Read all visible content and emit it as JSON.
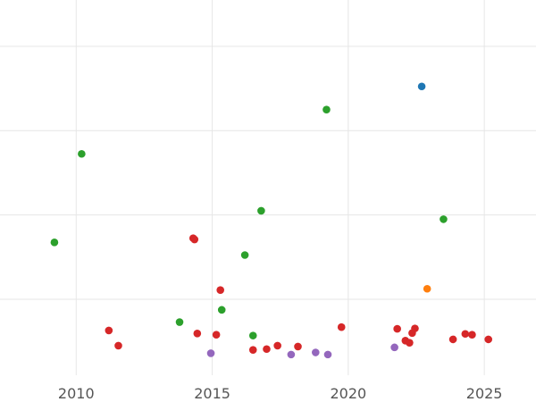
{
  "colors": {
    "blue": "#1f77b4",
    "orange": "#ff7f0e",
    "green": "#2ca02c",
    "red": "#d62728",
    "purple": "#9467bd",
    "grid": "#e6e6e6",
    "tick_text": "#555555"
  },
  "chart_data": {
    "type": "scatter",
    "title": "",
    "xlabel": "",
    "ylabel": "",
    "grid": true,
    "legend": "none",
    "xlim": [
      2007.2,
      2026.9
    ],
    "ylim": [
      -0.3,
      8.6
    ],
    "x_ticks": [
      2010,
      2015,
      2020,
      2025
    ],
    "y_gridlines": [
      1.5,
      3.5,
      5.5,
      7.5
    ],
    "series": [
      {
        "color": "blue",
        "points": [
          {
            "x": 2022.7,
            "y": 6.55
          }
        ]
      },
      {
        "color": "orange",
        "points": [
          {
            "x": 2022.9,
            "y": 1.75
          }
        ]
      },
      {
        "color": "green",
        "points": [
          {
            "x": 2009.2,
            "y": 2.85
          },
          {
            "x": 2010.2,
            "y": 4.95
          },
          {
            "x": 2013.8,
            "y": 0.96
          },
          {
            "x": 2015.35,
            "y": 1.25
          },
          {
            "x": 2016.2,
            "y": 2.55
          },
          {
            "x": 2016.5,
            "y": 0.64
          },
          {
            "x": 2016.8,
            "y": 3.6
          },
          {
            "x": 2019.2,
            "y": 6.0
          },
          {
            "x": 2023.5,
            "y": 3.4
          }
        ]
      },
      {
        "color": "red",
        "points": [
          {
            "x": 2011.2,
            "y": 0.76
          },
          {
            "x": 2011.55,
            "y": 0.4
          },
          {
            "x": 2014.3,
            "y": 2.95
          },
          {
            "x": 2014.35,
            "y": 2.92
          },
          {
            "x": 2014.45,
            "y": 0.69
          },
          {
            "x": 2015.15,
            "y": 0.66
          },
          {
            "x": 2015.3,
            "y": 1.72
          },
          {
            "x": 2016.5,
            "y": 0.3
          },
          {
            "x": 2017.0,
            "y": 0.32
          },
          {
            "x": 2017.4,
            "y": 0.4
          },
          {
            "x": 2018.15,
            "y": 0.38
          },
          {
            "x": 2019.75,
            "y": 0.84
          },
          {
            "x": 2021.8,
            "y": 0.8
          },
          {
            "x": 2022.1,
            "y": 0.52
          },
          {
            "x": 2022.25,
            "y": 0.47
          },
          {
            "x": 2022.35,
            "y": 0.7
          },
          {
            "x": 2022.45,
            "y": 0.81
          },
          {
            "x": 2023.85,
            "y": 0.55
          },
          {
            "x": 2024.3,
            "y": 0.68
          },
          {
            "x": 2024.55,
            "y": 0.66
          },
          {
            "x": 2025.15,
            "y": 0.55
          }
        ]
      },
      {
        "color": "purple",
        "points": [
          {
            "x": 2014.95,
            "y": 0.22
          },
          {
            "x": 2017.9,
            "y": 0.19
          },
          {
            "x": 2018.8,
            "y": 0.24
          },
          {
            "x": 2019.25,
            "y": 0.19
          },
          {
            "x": 2021.7,
            "y": 0.36
          }
        ]
      }
    ]
  }
}
